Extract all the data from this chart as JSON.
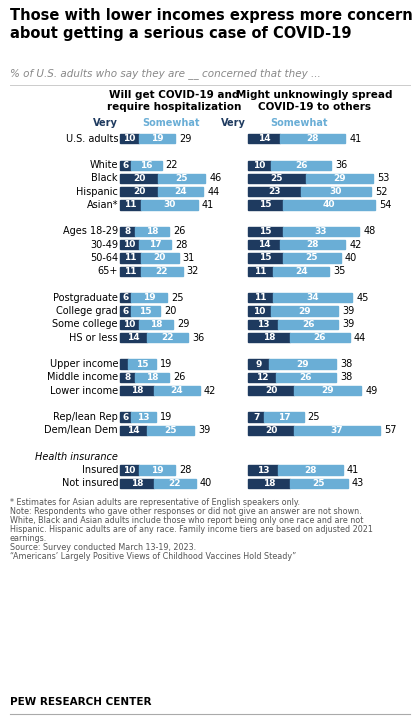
{
  "title": "Those with lower incomes express more concern\nabout getting a serious case of COVID-19",
  "subtitle": "% of U.S. adults who say they are __ concerned that they ...",
  "col1_header": "Will get COVID-19 and\nrequire hospitalization",
  "col2_header": "Might unknowingly spread\nCOVID-19 to others",
  "legend_very": "Very",
  "legend_somewhat": "Somewhat",
  "color_very": "#1e3a5f",
  "color_somewhat": "#6aaed6",
  "rows": [
    {
      "label": "U.S. adults",
      "v1": 10,
      "s1": 19,
      "t1": 29,
      "v2": 14,
      "s2": 28,
      "t2": 41,
      "gap_before": false,
      "italic": false,
      "header_only": false
    },
    {
      "label": "White",
      "v1": 6,
      "s1": 16,
      "t1": 22,
      "v2": 10,
      "s2": 26,
      "t2": 36,
      "gap_before": true,
      "italic": false,
      "header_only": false
    },
    {
      "label": "Black",
      "v1": 20,
      "s1": 25,
      "t1": 46,
      "v2": 25,
      "s2": 29,
      "t2": 53,
      "gap_before": false,
      "italic": false,
      "header_only": false
    },
    {
      "label": "Hispanic",
      "v1": 20,
      "s1": 24,
      "t1": 44,
      "v2": 23,
      "s2": 30,
      "t2": 52,
      "gap_before": false,
      "italic": false,
      "header_only": false
    },
    {
      "label": "Asian*",
      "v1": 11,
      "s1": 30,
      "t1": 41,
      "v2": 15,
      "s2": 40,
      "t2": 54,
      "gap_before": false,
      "italic": false,
      "header_only": false
    },
    {
      "label": "Ages 18-29",
      "v1": 8,
      "s1": 18,
      "t1": 26,
      "v2": 15,
      "s2": 33,
      "t2": 48,
      "gap_before": true,
      "italic": false,
      "header_only": false
    },
    {
      "label": "30-49",
      "v1": 10,
      "s1": 17,
      "t1": 28,
      "v2": 14,
      "s2": 28,
      "t2": 42,
      "gap_before": false,
      "italic": false,
      "header_only": false
    },
    {
      "label": "50-64",
      "v1": 11,
      "s1": 20,
      "t1": 31,
      "v2": 15,
      "s2": 25,
      "t2": 40,
      "gap_before": false,
      "italic": false,
      "header_only": false
    },
    {
      "label": "65+",
      "v1": 11,
      "s1": 22,
      "t1": 32,
      "v2": 11,
      "s2": 24,
      "t2": 35,
      "gap_before": false,
      "italic": false,
      "header_only": false
    },
    {
      "label": "Postgraduate",
      "v1": 6,
      "s1": 19,
      "t1": 25,
      "v2": 11,
      "s2": 34,
      "t2": 45,
      "gap_before": true,
      "italic": false,
      "header_only": false
    },
    {
      "label": "College grad",
      "v1": 6,
      "s1": 15,
      "t1": 20,
      "v2": 10,
      "s2": 29,
      "t2": 39,
      "gap_before": false,
      "italic": false,
      "header_only": false
    },
    {
      "label": "Some college",
      "v1": 10,
      "s1": 18,
      "t1": 29,
      "v2": 13,
      "s2": 26,
      "t2": 39,
      "gap_before": false,
      "italic": false,
      "header_only": false
    },
    {
      "label": "HS or less",
      "v1": 14,
      "s1": 22,
      "t1": 36,
      "v2": 18,
      "s2": 26,
      "t2": 44,
      "gap_before": false,
      "italic": false,
      "header_only": false
    },
    {
      "label": "Upper income",
      "v1": 4,
      "s1": 15,
      "t1": 19,
      "v2": 9,
      "s2": 29,
      "t2": 38,
      "gap_before": true,
      "italic": false,
      "header_only": false
    },
    {
      "label": "Middle income",
      "v1": 8,
      "s1": 18,
      "t1": 26,
      "v2": 12,
      "s2": 26,
      "t2": 38,
      "gap_before": false,
      "italic": false,
      "header_only": false
    },
    {
      "label": "Lower income",
      "v1": 18,
      "s1": 24,
      "t1": 42,
      "v2": 20,
      "s2": 29,
      "t2": 49,
      "gap_before": false,
      "italic": false,
      "header_only": false
    },
    {
      "label": "Rep/lean Rep",
      "v1": 6,
      "s1": 13,
      "t1": 19,
      "v2": 7,
      "s2": 17,
      "t2": 25,
      "gap_before": true,
      "italic": false,
      "header_only": false
    },
    {
      "label": "Dem/lean Dem",
      "v1": 14,
      "s1": 25,
      "t1": 39,
      "v2": 20,
      "s2": 37,
      "t2": 57,
      "gap_before": false,
      "italic": false,
      "header_only": false
    },
    {
      "label": "Health insurance",
      "v1": -1,
      "s1": -1,
      "t1": -1,
      "v2": -1,
      "s2": -1,
      "t2": -1,
      "gap_before": true,
      "italic": true,
      "header_only": true
    },
    {
      "label": "Insured",
      "v1": 10,
      "s1": 19,
      "t1": 28,
      "v2": 13,
      "s2": 28,
      "t2": 41,
      "gap_before": false,
      "italic": false,
      "header_only": false
    },
    {
      "label": "Not insured",
      "v1": 18,
      "s1": 22,
      "t1": 40,
      "v2": 18,
      "s2": 25,
      "t2": 43,
      "gap_before": false,
      "italic": false,
      "header_only": false
    }
  ],
  "note1": "* Estimates for Asian adults are representative of English speakers only.",
  "note2": "Note: Respondents who gave other responses or did not give an answer are not shown.",
  "note3": "White, Black and Asian adults include those who report being only one race and are not",
  "note4": "Hispanic. Hispanic adults are of any race. Family income tiers are based on adjusted 2021",
  "note5": "earnings.",
  "note6": "Source: Survey conducted March 13-19, 2023.",
  "note7": "“Americans’ Largely Positive Views of Childhood Vaccines Hold Steady”",
  "source_org": "PEW RESEARCH CENTER",
  "bar_max": 57
}
